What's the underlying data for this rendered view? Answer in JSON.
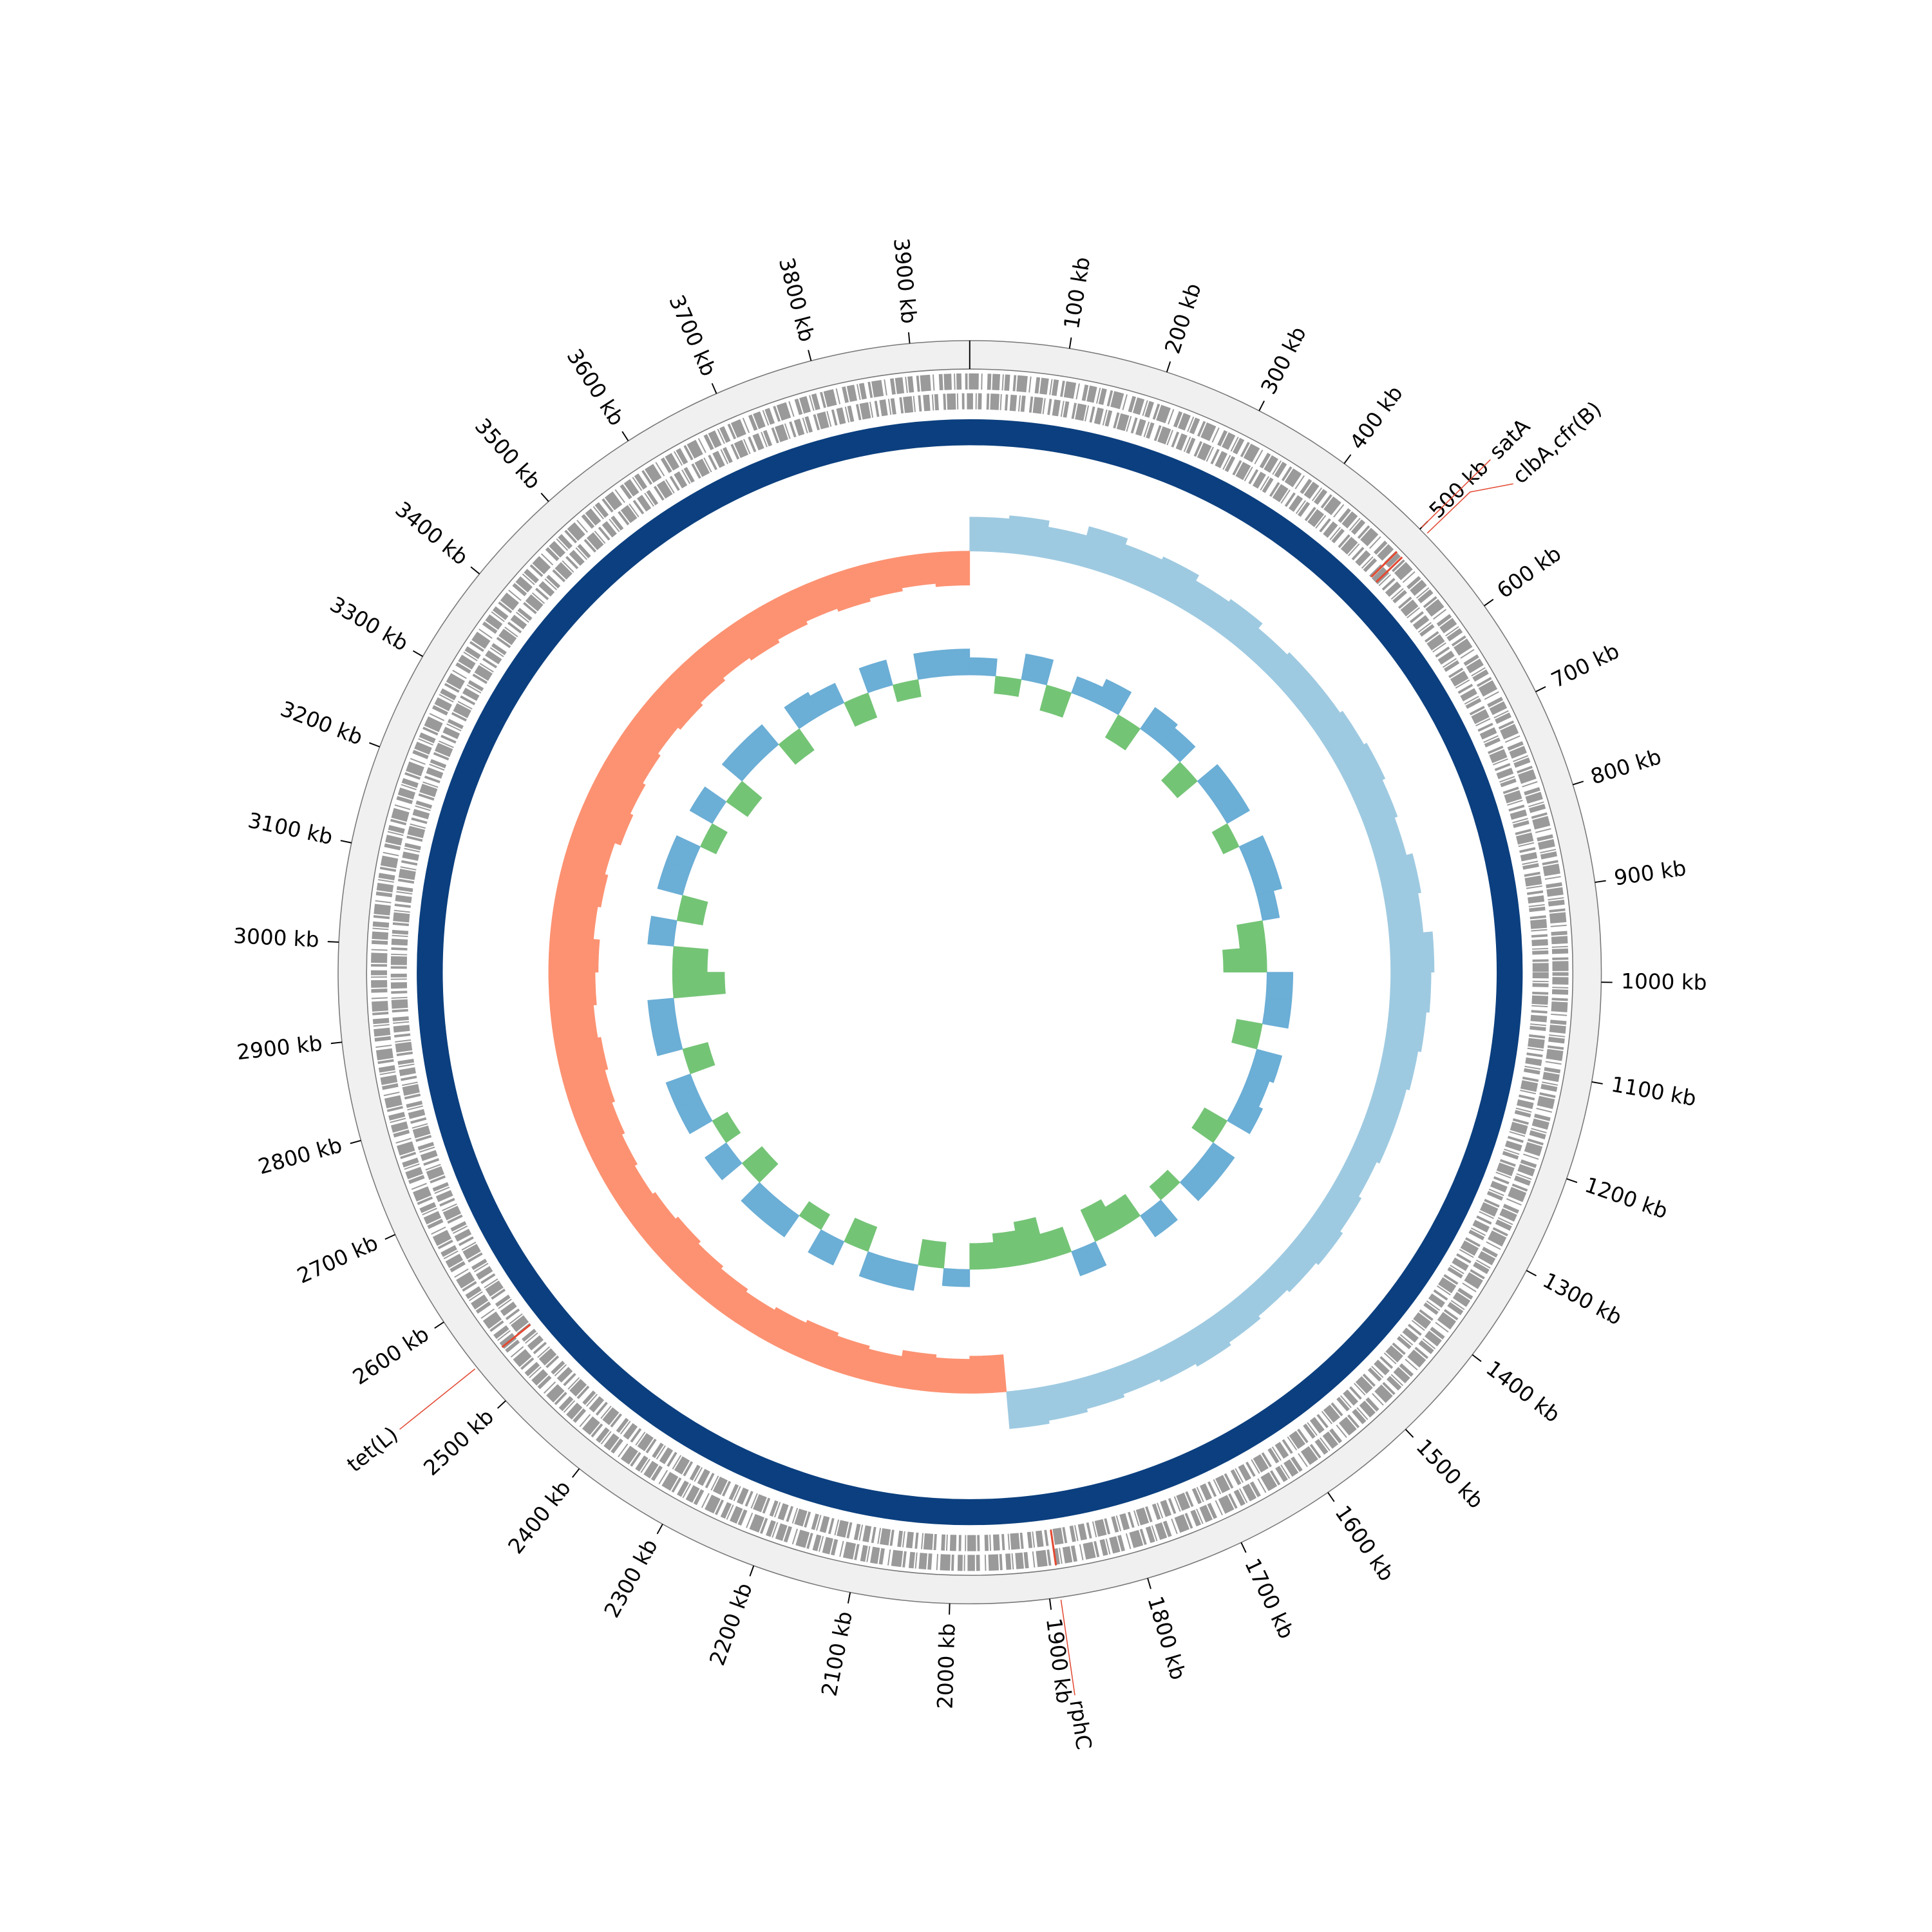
{
  "chart_data": {
    "type": "circular-genome",
    "xlim": [
      0,
      3960
    ],
    "xticks": [
      {
        "value": 100,
        "label": "100 kb"
      },
      {
        "value": 200,
        "label": "200 kb"
      },
      {
        "value": 300,
        "label": "300 kb"
      },
      {
        "value": 400,
        "label": "400 kb"
      },
      {
        "value": 500,
        "label": "500 kb"
      },
      {
        "value": 600,
        "label": "600 kb"
      },
      {
        "value": 700,
        "label": "700 kb"
      },
      {
        "value": 800,
        "label": "800 kb"
      },
      {
        "value": 900,
        "label": "900 kb"
      },
      {
        "value": 1000,
        "label": "1000 kb"
      },
      {
        "value": 1100,
        "label": "1100 kb"
      },
      {
        "value": 1200,
        "label": "1200 kb"
      },
      {
        "value": 1300,
        "label": "1300 kb"
      },
      {
        "value": 1400,
        "label": "1400 kb"
      },
      {
        "value": 1500,
        "label": "1500 kb"
      },
      {
        "value": 1600,
        "label": "1600 kb"
      },
      {
        "value": 1700,
        "label": "1700 kb"
      },
      {
        "value": 1800,
        "label": "1800 kb"
      },
      {
        "value": 1900,
        "label": "1900 kb"
      },
      {
        "value": 2000,
        "label": "2000 kb"
      },
      {
        "value": 2100,
        "label": "2100 kb"
      },
      {
        "value": 2200,
        "label": "2200 kb"
      },
      {
        "value": 2300,
        "label": "2300 kb"
      },
      {
        "value": 2400,
        "label": "2400 kb"
      },
      {
        "value": 2500,
        "label": "2500 kb"
      },
      {
        "value": 2600,
        "label": "2600 kb"
      },
      {
        "value": 2700,
        "label": "2700 kb"
      },
      {
        "value": 2800,
        "label": "2800 kb"
      },
      {
        "value": 2900,
        "label": "2900 kb"
      },
      {
        "value": 3000,
        "label": "3000 kb"
      },
      {
        "value": 3100,
        "label": "3100 kb"
      },
      {
        "value": 3200,
        "label": "3200 kb"
      },
      {
        "value": 3300,
        "label": "3300 kb"
      },
      {
        "value": 3400,
        "label": "3400 kb"
      },
      {
        "value": 3500,
        "label": "3500 kb"
      },
      {
        "value": 3600,
        "label": "3600 kb"
      },
      {
        "value": 3700,
        "label": "3700 kb"
      },
      {
        "value": 3800,
        "label": "3800 kb"
      },
      {
        "value": 3900,
        "label": "3900 kb"
      }
    ],
    "annotations": [
      {
        "label": "satA",
        "x": 500
      },
      {
        "label": "clbA,cfr(B)",
        "x": 508
      },
      {
        "label": "tet(L)",
        "x": 2544
      },
      {
        "label": "rphC",
        "x": 1889
      }
    ],
    "annotation_color": "#1f6fb4",
    "marker_color": "#e34a33",
    "x": [
      0,
      55,
      110,
      165,
      220,
      275,
      330,
      385,
      440,
      495,
      550,
      605,
      660,
      715,
      770,
      825,
      880,
      935,
      990,
      1045,
      1100,
      1155,
      1210,
      1265,
      1320,
      1375,
      1430,
      1485,
      1540,
      1595,
      1650,
      1705,
      1760,
      1815,
      1870,
      1925,
      1980,
      2035,
      2090,
      2145,
      2200,
      2255,
      2310,
      2365,
      2420,
      2475,
      2530,
      2585,
      2640,
      2695,
      2750,
      2805,
      2860,
      2915,
      2970,
      3025,
      3080,
      3135,
      3190,
      3245,
      3300,
      3355,
      3410,
      3465,
      3520,
      3575,
      3630,
      3685,
      3740,
      3795,
      3850,
      3905
    ],
    "gc_skew": {
      "ylim": [
        -1,
        1
      ],
      "positive_color": "#9ecae1",
      "negative_color": "#fc9272",
      "values": [
        0.55,
        0.6,
        0.5,
        0.65,
        0.55,
        0.6,
        0.5,
        0.55,
        0.45,
        0.5,
        0.5,
        0.55,
        0.6,
        0.55,
        0.5,
        0.6,
        0.55,
        0.7,
        0.65,
        0.6,
        0.55,
        0.5,
        0.5,
        0.45,
        0.5,
        0.55,
        0.5,
        0.45,
        0.5,
        0.55,
        0.5,
        0.45,
        0.5,
        0.55,
        0.6,
        -0.6,
        -0.55,
        -0.6,
        -0.5,
        -0.55,
        -0.6,
        -0.55,
        -0.5,
        -0.55,
        -0.6,
        -0.65,
        -0.6,
        -0.55,
        -0.6,
        -0.65,
        -0.7,
        -0.75,
        -0.7,
        -0.75,
        -0.8,
        -0.7,
        -0.75,
        -0.7,
        -0.8,
        -0.75,
        -0.7,
        -0.65,
        -0.7,
        -0.65,
        -0.6,
        -0.65,
        -0.6,
        -0.55,
        -0.6,
        -0.55,
        -0.5,
        -0.55
      ]
    },
    "gc_content": {
      "ylim": [
        -1,
        1
      ],
      "positive_color": "#6baed6",
      "negative_color": "#74c476",
      "values": [
        0.2,
        -0.2,
        0.3,
        -0.3,
        0.2,
        0.3,
        -0.3,
        0.3,
        0.25,
        -0.3,
        0.3,
        0.3,
        -0.2,
        0.3,
        0.3,
        0.2,
        -0.3,
        -0.5,
        0.3,
        0.3,
        -0.3,
        0.3,
        0.25,
        0.3,
        -0.3,
        0.3,
        0.3,
        -0.2,
        0.3,
        -0.3,
        -0.4,
        0.3,
        -0.3,
        -0.5,
        -0.4,
        -0.3,
        0.2,
        -0.3,
        0.3,
        0.3,
        -0.3,
        0.3,
        -0.2,
        0.3,
        0.3,
        -0.3,
        0.3,
        -0.2,
        0.3,
        0.3,
        -0.3,
        0.3,
        0.3,
        -0.6,
        -0.4,
        0.3,
        -0.3,
        0.3,
        0.3,
        -0.2,
        0.3,
        -0.3,
        0.3,
        0.3,
        -0.3,
        0.3,
        0.25,
        -0.3,
        0.3,
        -0.2,
        0.3,
        0.3
      ]
    }
  }
}
